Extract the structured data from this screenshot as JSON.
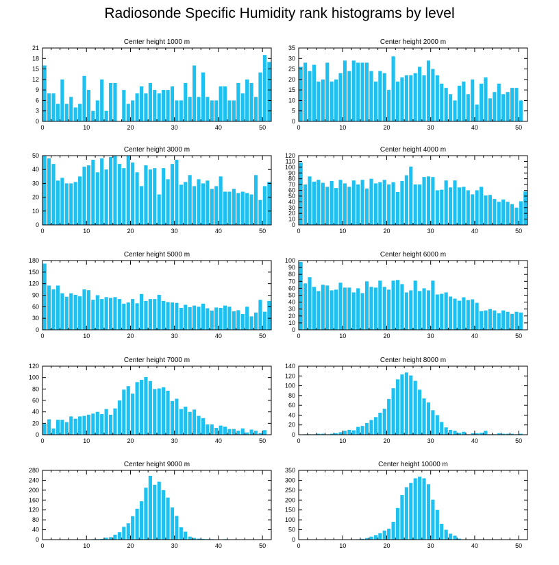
{
  "title": "Radiosonde Specific Humidity rank histograms by level",
  "colors": {
    "bar": "#1ec0f0",
    "axis": "#000000",
    "background": "#ffffff"
  },
  "chart_data": [
    {
      "type": "bar",
      "title": "Center height 1000 m",
      "xlabel": "",
      "ylabel": "",
      "x": [
        0,
        1,
        2,
        3,
        4,
        5,
        6,
        7,
        8,
        9,
        10,
        11,
        12,
        13,
        14,
        15,
        16,
        17,
        18,
        19,
        20,
        21,
        22,
        23,
        24,
        25,
        26,
        27,
        28,
        29,
        30,
        31,
        32,
        33,
        34,
        35,
        36,
        37,
        38,
        39,
        40,
        41,
        42,
        43,
        44,
        45,
        46,
        47,
        48,
        49,
        50,
        51
      ],
      "values": [
        16,
        8,
        8,
        5,
        12,
        5,
        7,
        4,
        5,
        13,
        9,
        3,
        6,
        12,
        3,
        11,
        11,
        0,
        9,
        5,
        6,
        8,
        10,
        8,
        11,
        9,
        8,
        9,
        9,
        10,
        6,
        6,
        11,
        7,
        16,
        7,
        14,
        7,
        6,
        6,
        10,
        10,
        6,
        6,
        11,
        8,
        12,
        11,
        7,
        14,
        19,
        17
      ],
      "xlim": [
        0,
        52
      ],
      "ylim": [
        0,
        21
      ],
      "xticks": [
        0,
        10,
        20,
        30,
        40,
        50
      ],
      "yticks": [
        0,
        3,
        6,
        9,
        12,
        15,
        18,
        21
      ]
    },
    {
      "type": "bar",
      "title": "Center height 2000 m",
      "xlabel": "",
      "ylabel": "",
      "x": [
        0,
        1,
        2,
        3,
        4,
        5,
        6,
        7,
        8,
        9,
        10,
        11,
        12,
        13,
        14,
        15,
        16,
        17,
        18,
        19,
        20,
        21,
        22,
        23,
        24,
        25,
        26,
        27,
        28,
        29,
        30,
        31,
        32,
        33,
        34,
        35,
        36,
        37,
        38,
        39,
        40,
        41,
        42,
        43,
        44,
        45,
        46,
        47,
        48,
        49,
        50,
        51
      ],
      "values": [
        26,
        28,
        24,
        27,
        19,
        20,
        28,
        19,
        20,
        23,
        29,
        24,
        29,
        28,
        28,
        28,
        24,
        19,
        24,
        23,
        15,
        31,
        19,
        21,
        22,
        22,
        23,
        26,
        22,
        29,
        25,
        22,
        18,
        16,
        13,
        10,
        17,
        19,
        13,
        20,
        8,
        18,
        21,
        11,
        14,
        18,
        13,
        14,
        16,
        16,
        10,
        0
      ],
      "xlim": [
        0,
        52
      ],
      "ylim": [
        0,
        35
      ],
      "xticks": [
        0,
        10,
        20,
        30,
        40,
        50
      ],
      "yticks": [
        0,
        5,
        10,
        15,
        20,
        25,
        30,
        35
      ]
    },
    {
      "type": "bar",
      "title": "Center height 3000 m",
      "xlabel": "",
      "ylabel": "",
      "x": [
        0,
        1,
        2,
        3,
        4,
        5,
        6,
        7,
        8,
        9,
        10,
        11,
        12,
        13,
        14,
        15,
        16,
        17,
        18,
        19,
        20,
        21,
        22,
        23,
        24,
        25,
        26,
        27,
        28,
        29,
        30,
        31,
        32,
        33,
        34,
        35,
        36,
        37,
        38,
        39,
        40,
        41,
        42,
        43,
        44,
        45,
        46,
        47,
        48,
        49,
        50,
        51
      ],
      "values": [
        50,
        48,
        44,
        32,
        34,
        30,
        30,
        31,
        35,
        42,
        43,
        47,
        38,
        48,
        40,
        49,
        50,
        44,
        41,
        50,
        45,
        38,
        28,
        43,
        40,
        41,
        22,
        41,
        33,
        44,
        47,
        29,
        31,
        36,
        28,
        33,
        30,
        32,
        26,
        28,
        35,
        24,
        24,
        26,
        23,
        24,
        23,
        22,
        36,
        18,
        28,
        31
      ],
      "xlim": [
        0,
        52
      ],
      "ylim": [
        0,
        50
      ],
      "xticks": [
        0,
        10,
        20,
        30,
        40,
        50
      ],
      "yticks": [
        0,
        10,
        20,
        30,
        40,
        50
      ]
    },
    {
      "type": "bar",
      "title": "Center height 4000 m",
      "xlabel": "",
      "ylabel": "",
      "x": [
        0,
        1,
        2,
        3,
        4,
        5,
        6,
        7,
        8,
        9,
        10,
        11,
        12,
        13,
        14,
        15,
        16,
        17,
        18,
        19,
        20,
        21,
        22,
        23,
        24,
        25,
        26,
        27,
        28,
        29,
        30,
        31,
        32,
        33,
        34,
        35,
        36,
        37,
        38,
        39,
        40,
        41,
        42,
        43,
        44,
        45,
        46,
        47,
        48,
        49,
        50,
        51
      ],
      "values": [
        108,
        70,
        84,
        75,
        78,
        73,
        66,
        76,
        64,
        78,
        72,
        66,
        77,
        70,
        78,
        63,
        80,
        72,
        74,
        78,
        70,
        74,
        57,
        76,
        86,
        101,
        70,
        70,
        83,
        84,
        83,
        60,
        61,
        77,
        65,
        77,
        65,
        66,
        60,
        53,
        60,
        66,
        51,
        52,
        45,
        40,
        44,
        40,
        36,
        30,
        41,
        58
      ],
      "xlim": [
        0,
        52
      ],
      "ylim": [
        0,
        120
      ],
      "xticks": [
        0,
        10,
        20,
        30,
        40,
        50
      ],
      "yticks": [
        0,
        10,
        20,
        30,
        40,
        50,
        60,
        70,
        80,
        90,
        100,
        110,
        120
      ]
    },
    {
      "type": "bar",
      "title": "Center height 5000 m",
      "xlabel": "",
      "ylabel": "",
      "x": [
        0,
        1,
        2,
        3,
        4,
        5,
        6,
        7,
        8,
        9,
        10,
        11,
        12,
        13,
        14,
        15,
        16,
        17,
        18,
        19,
        20,
        21,
        22,
        23,
        24,
        25,
        26,
        27,
        28,
        29,
        30,
        31,
        32,
        33,
        34,
        35,
        36,
        37,
        38,
        39,
        40,
        41,
        42,
        43,
        44,
        45,
        46,
        47,
        48,
        49,
        50,
        51
      ],
      "values": [
        172,
        115,
        105,
        115,
        95,
        86,
        95,
        91,
        87,
        105,
        103,
        78,
        90,
        80,
        85,
        83,
        85,
        80,
        68,
        71,
        80,
        69,
        93,
        75,
        80,
        80,
        91,
        75,
        72,
        71,
        70,
        57,
        65,
        59,
        63,
        60,
        68,
        56,
        50,
        58,
        57,
        63,
        60,
        48,
        51,
        41,
        60,
        35,
        45,
        78,
        47,
        75
      ],
      "xlim": [
        0,
        52
      ],
      "ylim": [
        0,
        180
      ],
      "xticks": [
        0,
        10,
        20,
        30,
        40,
        50
      ],
      "yticks": [
        0,
        30,
        60,
        90,
        120,
        150,
        180
      ]
    },
    {
      "type": "bar",
      "title": "Center height 6000 m",
      "xlabel": "",
      "ylabel": "",
      "x": [
        0,
        1,
        2,
        3,
        4,
        5,
        6,
        7,
        8,
        9,
        10,
        11,
        12,
        13,
        14,
        15,
        16,
        17,
        18,
        19,
        20,
        21,
        22,
        23,
        24,
        25,
        26,
        27,
        28,
        29,
        30,
        31,
        32,
        33,
        34,
        35,
        36,
        37,
        38,
        39,
        40,
        41,
        42,
        43,
        44,
        45,
        46,
        47,
        48,
        49,
        50,
        51
      ],
      "values": [
        98,
        67,
        76,
        62,
        56,
        65,
        64,
        57,
        58,
        68,
        61,
        61,
        54,
        60,
        53,
        70,
        62,
        61,
        71,
        62,
        58,
        71,
        72,
        66,
        54,
        57,
        71,
        56,
        60,
        57,
        71,
        51,
        52,
        54,
        48,
        45,
        42,
        47,
        43,
        44,
        39,
        27,
        28,
        30,
        28,
        24,
        28,
        26,
        23,
        26,
        25,
        0
      ],
      "xlim": [
        0,
        52
      ],
      "ylim": [
        0,
        100
      ],
      "xticks": [
        0,
        10,
        20,
        30,
        40,
        50
      ],
      "yticks": [
        0,
        10,
        20,
        30,
        40,
        50,
        60,
        70,
        80,
        90,
        100
      ]
    },
    {
      "type": "bar",
      "title": "Center height 7000 m",
      "xlabel": "",
      "ylabel": "",
      "x": [
        0,
        1,
        2,
        3,
        4,
        5,
        6,
        7,
        8,
        9,
        10,
        11,
        12,
        13,
        14,
        15,
        16,
        17,
        18,
        19,
        20,
        21,
        22,
        23,
        24,
        25,
        26,
        27,
        28,
        29,
        30,
        31,
        32,
        33,
        34,
        35,
        36,
        37,
        38,
        39,
        40,
        41,
        42,
        43,
        44,
        45,
        46,
        47,
        48,
        49,
        50,
        51
      ],
      "values": [
        19,
        27,
        11,
        26,
        26,
        22,
        32,
        28,
        32,
        33,
        35,
        37,
        40,
        36,
        45,
        35,
        46,
        60,
        79,
        85,
        72,
        92,
        96,
        101,
        94,
        80,
        81,
        83,
        77,
        59,
        63,
        45,
        49,
        40,
        44,
        33,
        29,
        18,
        18,
        12,
        16,
        14,
        10,
        10,
        7,
        11,
        4,
        9,
        7,
        3,
        8,
        0
      ],
      "xlim": [
        0,
        52
      ],
      "ylim": [
        0,
        120
      ],
      "xticks": [
        0,
        10,
        20,
        30,
        40,
        50
      ],
      "yticks": [
        0,
        20,
        40,
        60,
        80,
        100,
        120
      ]
    },
    {
      "type": "bar",
      "title": "Center height 8000 m",
      "xlabel": "",
      "ylabel": "",
      "x": [
        0,
        1,
        2,
        3,
        4,
        5,
        6,
        7,
        8,
        9,
        10,
        11,
        12,
        13,
        14,
        15,
        16,
        17,
        18,
        19,
        20,
        21,
        22,
        23,
        24,
        25,
        26,
        27,
        28,
        29,
        30,
        31,
        32,
        33,
        34,
        35,
        36,
        37,
        38,
        39,
        40,
        41,
        42,
        43,
        44,
        45,
        46,
        47,
        48,
        49,
        50,
        51
      ],
      "values": [
        0,
        1,
        1,
        1,
        2,
        2,
        1,
        2,
        3,
        5,
        8,
        10,
        9,
        16,
        18,
        24,
        30,
        36,
        45,
        53,
        73,
        95,
        113,
        123,
        127,
        121,
        110,
        92,
        74,
        66,
        50,
        40,
        26,
        15,
        10,
        8,
        4,
        6,
        1,
        3,
        3,
        4,
        8,
        1,
        1,
        3,
        2,
        2,
        2,
        1,
        2,
        0
      ],
      "xlim": [
        0,
        52
      ],
      "ylim": [
        0,
        140
      ],
      "xticks": [
        0,
        10,
        20,
        30,
        40,
        50
      ],
      "yticks": [
        0,
        20,
        40,
        60,
        80,
        100,
        120,
        140
      ]
    },
    {
      "type": "bar",
      "title": "Center height 9000 m",
      "xlabel": "",
      "ylabel": "",
      "x": [
        0,
        1,
        2,
        3,
        4,
        5,
        6,
        7,
        8,
        9,
        10,
        11,
        12,
        13,
        14,
        15,
        16,
        17,
        18,
        19,
        20,
        21,
        22,
        23,
        24,
        25,
        26,
        27,
        28,
        29,
        30,
        31,
        32,
        33,
        34,
        35,
        36,
        37,
        38,
        39,
        40,
        41,
        42,
        43,
        44,
        45,
        46,
        47,
        48,
        49,
        50,
        51
      ],
      "values": [
        0,
        0,
        0,
        0,
        0,
        0,
        0,
        0,
        0,
        0,
        1,
        2,
        2,
        3,
        8,
        10,
        20,
        30,
        52,
        66,
        95,
        125,
        155,
        210,
        258,
        222,
        234,
        200,
        170,
        130,
        96,
        50,
        32,
        12,
        7,
        4,
        3,
        2,
        2,
        1,
        1,
        2,
        1,
        1,
        1,
        0,
        0,
        0,
        0,
        0,
        0,
        0
      ],
      "xlim": [
        0,
        52
      ],
      "ylim": [
        0,
        280
      ],
      "xticks": [
        0,
        10,
        20,
        30,
        40,
        50
      ],
      "yticks": [
        0,
        40,
        80,
        120,
        160,
        200,
        240,
        280
      ]
    },
    {
      "type": "bar",
      "title": "Center height 10000 m",
      "xlabel": "",
      "ylabel": "",
      "x": [
        0,
        1,
        2,
        3,
        4,
        5,
        6,
        7,
        8,
        9,
        10,
        11,
        12,
        13,
        14,
        15,
        16,
        17,
        18,
        19,
        20,
        21,
        22,
        23,
        24,
        25,
        26,
        27,
        28,
        29,
        30,
        31,
        32,
        33,
        34,
        35,
        36,
        37,
        38,
        39,
        40,
        41,
        42,
        43,
        44,
        45,
        46,
        47,
        48,
        49,
        50,
        51
      ],
      "values": [
        0,
        0,
        0,
        0,
        0,
        0,
        0,
        0,
        0,
        0,
        0,
        0,
        1,
        2,
        4,
        8,
        15,
        23,
        33,
        46,
        55,
        90,
        160,
        225,
        265,
        287,
        310,
        318,
        310,
        280,
        202,
        150,
        80,
        50,
        30,
        20,
        5,
        0,
        0,
        0,
        0,
        0,
        0,
        0,
        0,
        0,
        0,
        0,
        0,
        0,
        0,
        0
      ],
      "xlim": [
        0,
        52
      ],
      "ylim": [
        0,
        350
      ],
      "xticks": [
        0,
        10,
        20,
        30,
        40,
        50
      ],
      "yticks": [
        0,
        50,
        100,
        150,
        200,
        250,
        300,
        350
      ]
    }
  ]
}
